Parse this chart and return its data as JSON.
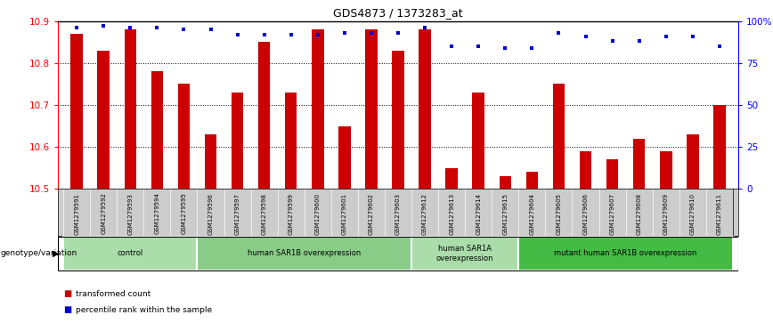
{
  "title": "GDS4873 / 1373283_at",
  "samples": [
    "GSM1279591",
    "GSM1279592",
    "GSM1279593",
    "GSM1279594",
    "GSM1279595",
    "GSM1279596",
    "GSM1279597",
    "GSM1279598",
    "GSM1279599",
    "GSM1279600",
    "GSM1279601",
    "GSM1279602",
    "GSM1279603",
    "GSM1279612",
    "GSM1279613",
    "GSM1279614",
    "GSM1279615",
    "GSM1279604",
    "GSM1279605",
    "GSM1279606",
    "GSM1279607",
    "GSM1279608",
    "GSM1279609",
    "GSM1279610",
    "GSM1279611"
  ],
  "bar_values": [
    10.87,
    10.83,
    10.88,
    10.78,
    10.75,
    10.63,
    10.73,
    10.85,
    10.73,
    10.88,
    10.65,
    10.88,
    10.83,
    10.88,
    10.55,
    10.73,
    10.53,
    10.54,
    10.75,
    10.59,
    10.57,
    10.62,
    10.59,
    10.63,
    10.7
  ],
  "percentile_values": [
    96,
    97,
    96,
    96,
    95,
    95,
    92,
    92,
    92,
    92,
    93,
    93,
    93,
    96,
    85,
    85,
    84,
    84,
    93,
    91,
    88,
    88,
    91,
    91,
    85
  ],
  "bar_color": "#cc0000",
  "dot_color": "#0000cc",
  "ylim_left": [
    10.5,
    10.9
  ],
  "ylim_right": [
    0,
    100
  ],
  "yticks_left": [
    10.5,
    10.6,
    10.7,
    10.8,
    10.9
  ],
  "yticks_right": [
    0,
    25,
    50,
    75,
    100
  ],
  "ytick_labels_right": [
    "0",
    "25",
    "50",
    "75",
    "100%"
  ],
  "gridlines": [
    10.6,
    10.7,
    10.8
  ],
  "groups": [
    {
      "label": "control",
      "start": 0,
      "end": 5,
      "color": "#aaddaa"
    },
    {
      "label": "human SAR1B overexpression",
      "start": 5,
      "end": 13,
      "color": "#88cc88"
    },
    {
      "label": "human SAR1A\noverexpression",
      "start": 13,
      "end": 17,
      "color": "#aaddaa"
    },
    {
      "label": "mutant human SAR1B overexpression",
      "start": 17,
      "end": 25,
      "color": "#44bb44"
    }
  ],
  "group_label_prefix": "genotype/variation",
  "legend_items": [
    {
      "color": "#cc0000",
      "label": "transformed count"
    },
    {
      "color": "#0000cc",
      "label": "percentile rank within the sample"
    }
  ],
  "background_color": "#ffffff",
  "xtick_area_color": "#cccccc",
  "fig_width": 8.68,
  "fig_height": 3.63,
  "dpi": 100
}
